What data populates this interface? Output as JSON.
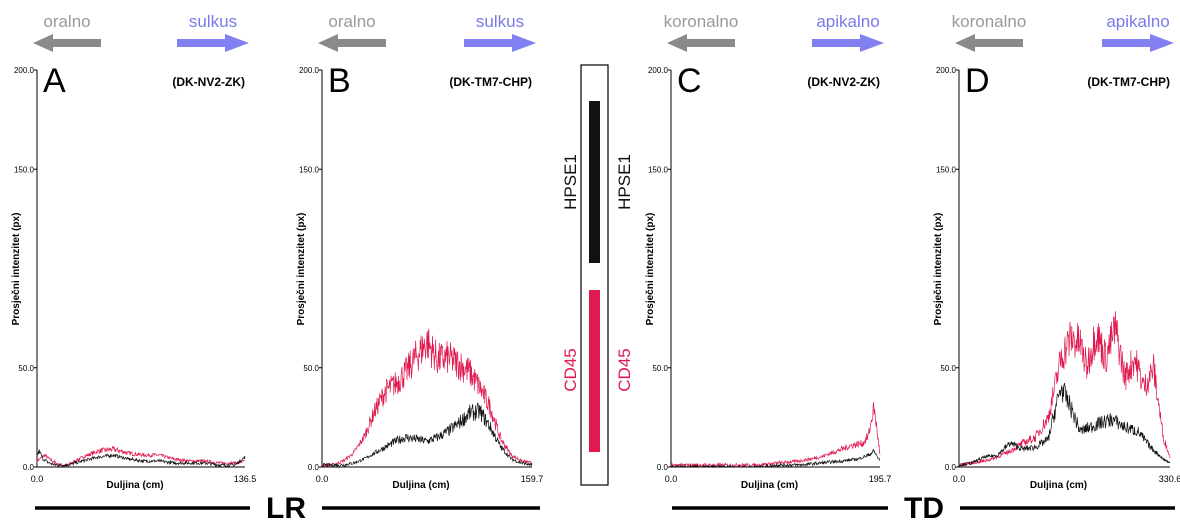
{
  "colors": {
    "hpse1": "#111111",
    "cd45": "#e01a4f",
    "left_arrow": "#8a8a8a",
    "right_arrow": "#8080f0",
    "left_text": "#9a9a9a",
    "right_text": "#7a7ae6"
  },
  "groups": [
    {
      "label": "LR"
    },
    {
      "label": "TD"
    }
  ],
  "legend": {
    "hpse1_label": "HPSE1",
    "cd45_label": "CD45"
  },
  "chart_data": [
    {
      "type": "line",
      "panel_letter": "A",
      "sample": "(DK-NV2-ZK)",
      "direction_left": "oralno",
      "direction_right": "sulkus",
      "xlabel": "Duljina (cm)",
      "ylabel": "Prosječni intenzitet (px)",
      "xlim": [
        0,
        136.5
      ],
      "ylim": [
        0,
        200
      ],
      "x_ticks": [
        "0.0",
        "136.5"
      ],
      "y_ticks": [
        "0.0",
        "50.0",
        "150.0",
        "200.0"
      ],
      "series": [
        {
          "key": "cd45",
          "x": [
            0,
            5,
            10,
            15,
            20,
            30,
            40,
            50,
            60,
            70,
            80,
            90,
            100,
            110,
            120,
            130,
            136.5
          ],
          "values": [
            3,
            6,
            3,
            1,
            1,
            5,
            8,
            9,
            7,
            6,
            6,
            4,
            3,
            3,
            2,
            2,
            3
          ]
        },
        {
          "key": "hpse1",
          "x": [
            0,
            1.5,
            4,
            8,
            12,
            20,
            30,
            40,
            50,
            60,
            70,
            80,
            90,
            100,
            110,
            120,
            130,
            136.5
          ],
          "values": [
            6,
            8,
            4,
            2,
            1,
            1,
            3,
            5,
            6,
            4,
            3,
            3,
            2,
            2,
            2,
            1,
            1,
            5
          ]
        }
      ]
    },
    {
      "type": "line",
      "panel_letter": "B",
      "sample": "(DK-TM7-CHP)",
      "direction_left": "oralno",
      "direction_right": "sulkus",
      "xlabel": "Duljina (cm)",
      "ylabel": "Prosječni intenzitet (px)",
      "xlim": [
        0,
        159.7
      ],
      "ylim": [
        0,
        200
      ],
      "x_ticks": [
        "0.0",
        "159.7"
      ],
      "y_ticks": [
        "0.0",
        "50.0",
        "150.0",
        "200.0"
      ],
      "series": [
        {
          "key": "cd45",
          "x": [
            0,
            8,
            16,
            24,
            32,
            40,
            48,
            56,
            64,
            72,
            80,
            88,
            96,
            104,
            112,
            120,
            128,
            136,
            144,
            152,
            159.7
          ],
          "values": [
            1,
            1,
            3,
            7,
            15,
            28,
            38,
            42,
            48,
            56,
            63,
            54,
            55,
            52,
            48,
            40,
            30,
            14,
            6,
            3,
            2
          ]
        },
        {
          "key": "hpse1",
          "x": [
            0,
            8,
            16,
            24,
            32,
            40,
            48,
            56,
            64,
            72,
            80,
            88,
            96,
            104,
            112,
            120,
            128,
            136,
            144,
            152,
            159.7
          ],
          "values": [
            1,
            1,
            1,
            2,
            4,
            7,
            10,
            13,
            15,
            14,
            13,
            15,
            18,
            22,
            27,
            28,
            20,
            10,
            4,
            2,
            1
          ]
        }
      ]
    },
    {
      "type": "line",
      "panel_letter": "C",
      "sample": "(DK-NV2-ZK)",
      "direction_left": "koronalno",
      "direction_right": "apikalno",
      "xlabel": "Duljina (cm)",
      "ylabel": "Prosječni intenzitet (px)",
      "xlim": [
        0,
        195.7
      ],
      "ylim": [
        0,
        200
      ],
      "x_ticks": [
        "0.0",
        "195.7"
      ],
      "y_ticks": [
        "0.0",
        "50.0",
        "150.0",
        "200.0"
      ],
      "series": [
        {
          "key": "cd45",
          "x": [
            0,
            20,
            40,
            60,
            80,
            100,
            120,
            140,
            150,
            160,
            170,
            180,
            185,
            190,
            193,
            195.7
          ],
          "values": [
            1,
            1,
            1,
            1,
            1,
            2,
            3,
            5,
            7,
            9,
            11,
            12,
            16,
            30,
            18,
            6
          ]
        },
        {
          "key": "hpse1",
          "x": [
            0,
            20,
            40,
            60,
            80,
            100,
            120,
            140,
            160,
            175,
            185,
            190,
            195.7
          ],
          "values": [
            0,
            0,
            0,
            0,
            0,
            1,
            1,
            2,
            3,
            4,
            6,
            8,
            3
          ]
        }
      ]
    },
    {
      "type": "line",
      "panel_letter": "D",
      "sample": "(DK-TM7-CHP)",
      "direction_left": "koronalno",
      "direction_right": "apikalno",
      "xlabel": "Duljina (cm)",
      "ylabel": "Prosječni intenzitet (px)",
      "xlim": [
        0,
        330.6
      ],
      "ylim": [
        0,
        200
      ],
      "x_ticks": [
        "0.0",
        "330.6"
      ],
      "y_ticks": [
        "0.0",
        "50.0",
        "150.0",
        "200.0"
      ],
      "series": [
        {
          "key": "cd45",
          "x": [
            0,
            20,
            40,
            60,
            80,
            100,
            120,
            140,
            150,
            160,
            175,
            190,
            200,
            215,
            230,
            245,
            260,
            275,
            290,
            305,
            320,
            330.6
          ],
          "values": [
            1,
            2,
            3,
            5,
            8,
            12,
            15,
            25,
            40,
            55,
            65,
            62,
            50,
            68,
            55,
            70,
            45,
            55,
            40,
            50,
            15,
            5
          ]
        },
        {
          "key": "hpse1",
          "x": [
            0,
            20,
            40,
            60,
            80,
            100,
            120,
            140,
            150,
            160,
            175,
            190,
            205,
            220,
            240,
            260,
            280,
            300,
            320,
            330.6
          ],
          "values": [
            1,
            2,
            5,
            6,
            12,
            9,
            10,
            14,
            28,
            40,
            30,
            18,
            20,
            22,
            24,
            20,
            18,
            10,
            4,
            2
          ]
        }
      ]
    }
  ]
}
